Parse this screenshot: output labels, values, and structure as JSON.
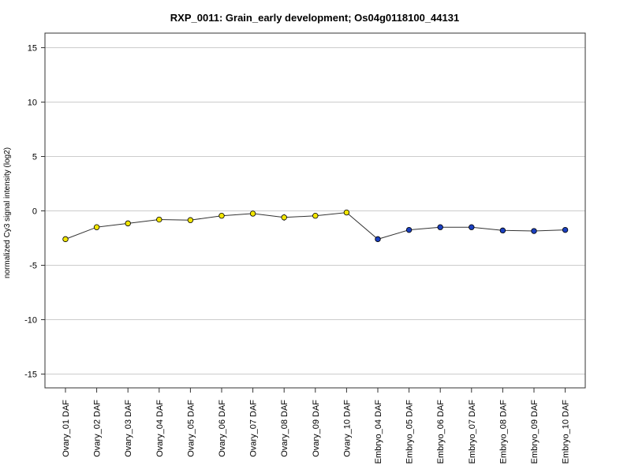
{
  "chart_data": {
    "type": "line",
    "title": "RXP_0011: Grain_early development; Os04g0118100_44131",
    "xlabel": "",
    "ylabel": "normalized Cy3 signal intensity (log2)",
    "ylim": [
      -16,
      16
    ],
    "y_ticks": [
      15,
      10,
      5,
      0,
      -5,
      -10,
      -15
    ],
    "y_tick_labels": [
      "15",
      "10",
      "5",
      "0",
      "-5",
      "-10",
      "-15"
    ],
    "grid": "horizontal",
    "categories": [
      "Ovary_01 DAF",
      "Ovary_02 DAF",
      "Ovary_03 DAF",
      "Ovary_04 DAF",
      "Ovary_05 DAF",
      "Ovary_06 DAF",
      "Ovary_07 DAF",
      "Ovary_08 DAF",
      "Ovary_09 DAF",
      "Ovary_10 DAF",
      "Embryo_04 DAF",
      "Embryo_05 DAF",
      "Embryo_06 DAF",
      "Embryo_07 DAF",
      "Embryo_08 DAF",
      "Embryo_09 DAF",
      "Embryo_10 DAF"
    ],
    "series": [
      {
        "values": [
          -2.6,
          -1.5,
          -1.15,
          -0.8,
          -0.85,
          -0.45,
          -0.25,
          -0.6,
          -0.45,
          -0.15,
          -2.6,
          -1.75,
          -1.5,
          -1.5,
          -1.8,
          -1.85,
          -1.75
        ],
        "errors": [
          0.12,
          0.15,
          0.1,
          0.12,
          0.1,
          0.12,
          0.22,
          0.3,
          0.15,
          0.25,
          0.12,
          0.08,
          0.08,
          0.1,
          0.08,
          0.05,
          0.08
        ],
        "point_colors": [
          "#f2e600",
          "#f2e600",
          "#f2e600",
          "#f2e600",
          "#f2e600",
          "#f2e600",
          "#f2e600",
          "#f2e600",
          "#f2e600",
          "#f2e600",
          "#1a3fbf",
          "#1a3fbf",
          "#1a3fbf",
          "#1a3fbf",
          "#1a3fbf",
          "#1a3fbf",
          "#1a3fbf"
        ]
      }
    ],
    "line_color": "#333333",
    "grid_color": "#cccccc"
  }
}
